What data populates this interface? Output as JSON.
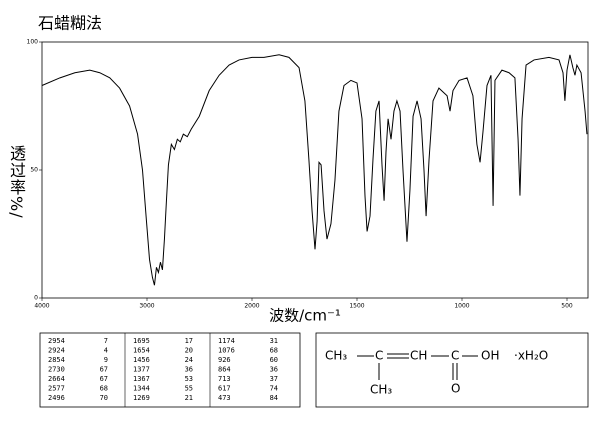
{
  "chart_data": {
    "type": "line",
    "title": "石蜡糊法",
    "xlabel": "波数/cm⁻¹",
    "ylabel": "透过率%/",
    "x_scale_change": 2000,
    "x_scale_factor": 2,
    "xlim": [
      4000,
      400
    ],
    "xticks": [
      4000,
      3000,
      2000,
      1500,
      1000,
      500
    ],
    "ylim": [
      0,
      100
    ],
    "yticks": [
      0,
      50,
      100
    ],
    "x": [
      4000,
      3829,
      3687,
      3545,
      3450,
      3355,
      3261,
      3166,
      3090,
      3043,
      3005,
      2976,
      2948,
      2929,
      2910,
      2891,
      2872,
      2853,
      2834,
      2815,
      2796,
      2768,
      2739,
      2711,
      2683,
      2654,
      2616,
      2578,
      2502,
      2408,
      2313,
      2218,
      2123,
      2000,
      1943,
      1871,
      1824,
      1776,
      1748,
      1729,
      1714,
      1700,
      1690,
      1681,
      1671,
      1657,
      1643,
      1624,
      1605,
      1586,
      1562,
      1529,
      1500,
      1476,
      1462,
      1452,
      1438,
      1424,
      1410,
      1395,
      1381,
      1371,
      1362,
      1352,
      1338,
      1324,
      1310,
      1295,
      1281,
      1262,
      1248,
      1233,
      1214,
      1195,
      1181,
      1171,
      1157,
      1138,
      1110,
      1071,
      1057,
      1043,
      1014,
      976,
      948,
      929,
      914,
      900,
      881,
      862,
      852,
      843,
      810,
      776,
      748,
      733,
      724,
      714,
      695,
      657,
      586,
      538,
      519,
      510,
      500,
      486,
      472,
      462,
      453,
      433,
      414,
      405
    ],
    "series": [
      {
        "color": "#000000",
        "values": [
          83,
          86,
          88,
          89,
          88,
          86,
          82,
          75,
          64,
          50,
          30,
          15,
          8,
          5,
          12,
          10,
          14,
          11,
          23,
          38,
          52,
          60,
          58,
          62,
          61,
          64,
          63,
          66,
          71,
          81,
          87,
          91,
          93,
          94,
          94,
          95,
          94,
          90,
          77,
          54,
          34,
          19,
          30,
          53,
          52,
          34,
          23,
          29,
          46,
          73,
          83,
          85,
          84,
          70,
          40,
          26,
          32,
          54,
          73,
          77,
          52,
          38,
          57,
          70,
          62,
          73,
          77,
          73,
          50,
          22,
          42,
          71,
          77,
          70,
          50,
          32,
          54,
          77,
          82,
          79,
          73,
          81,
          85,
          86,
          79,
          60,
          53,
          65,
          83,
          87,
          36,
          85,
          89,
          88,
          86,
          62,
          40,
          70,
          91,
          93,
          94,
          93,
          88,
          77,
          89,
          95,
          90,
          87,
          91,
          88,
          73,
          64
        ]
      }
    ]
  },
  "peak_table": {
    "rows": [
      [
        "2954",
        "7",
        "1695",
        "17",
        "1174",
        "31"
      ],
      [
        "2924",
        "4",
        "1654",
        "20",
        "1076",
        "68"
      ],
      [
        "2854",
        "9",
        "1456",
        "24",
        "926",
        "60"
      ],
      [
        "2730",
        "67",
        "1377",
        "36",
        "864",
        "36"
      ],
      [
        "2664",
        "67",
        "1367",
        "53",
        "713",
        "37"
      ],
      [
        "2577",
        "68",
        "1344",
        "55",
        "617",
        "74"
      ],
      [
        "2496",
        "70",
        "1269",
        "21",
        "473",
        "84"
      ]
    ]
  },
  "structure": {
    "ch3_left": "CH₃",
    "c1": "C",
    "ch": "CH",
    "c2": "C",
    "oh": "OH",
    "hydrate": "·xH₂O",
    "ch3_bottom": "CH₃",
    "o": "O"
  }
}
